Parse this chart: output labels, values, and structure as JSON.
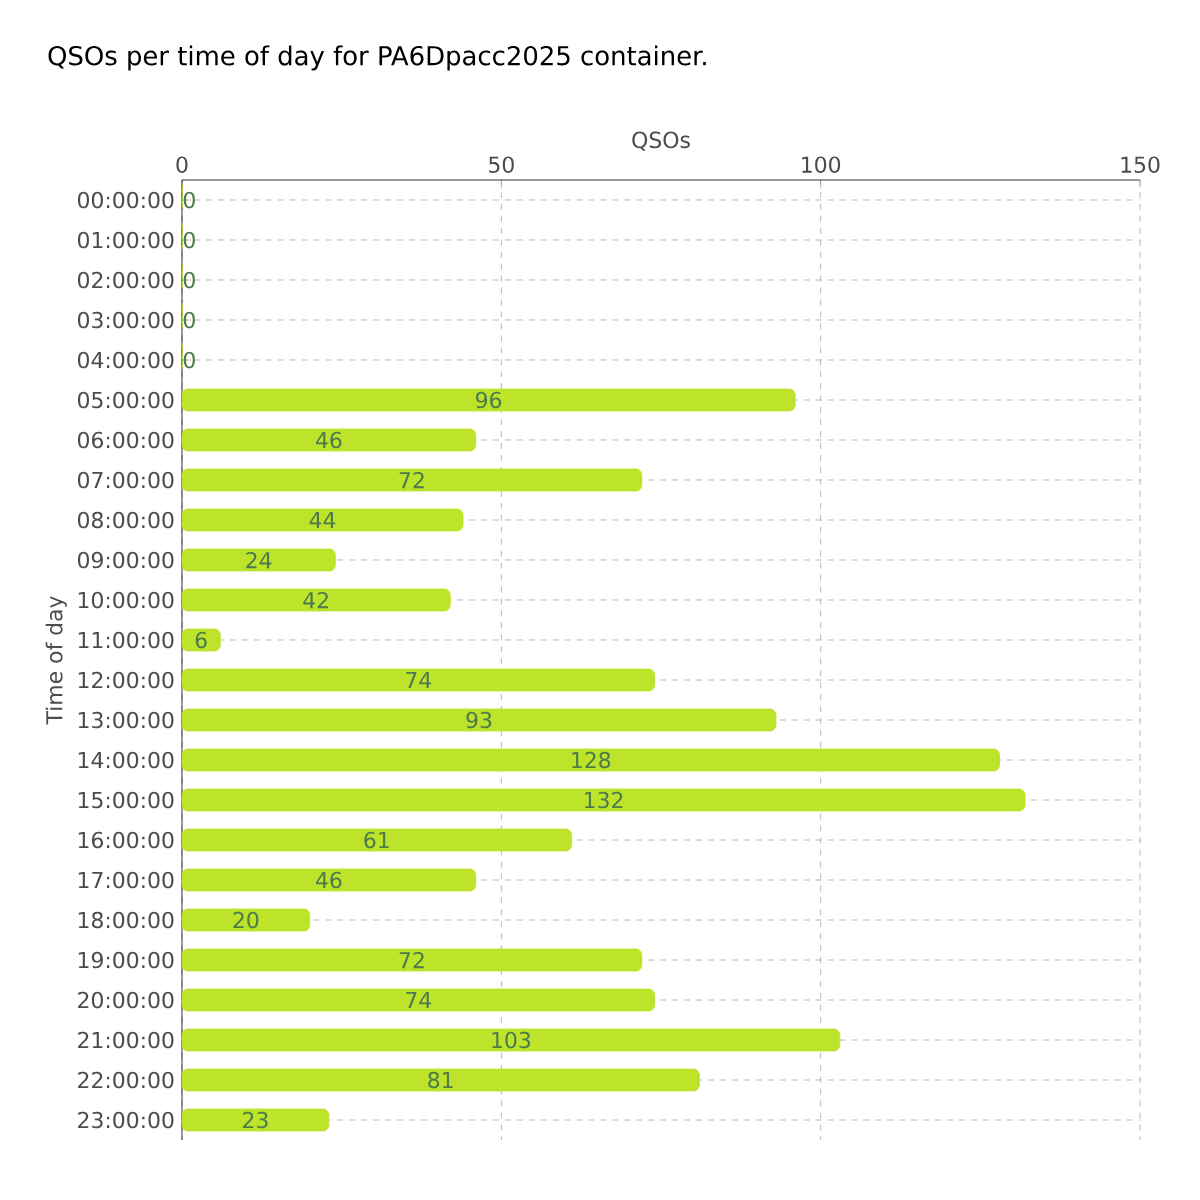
{
  "chart_data": {
    "type": "bar",
    "orientation": "horizontal",
    "title": "QSOs per time of day for PA6Dpacc2025 container.",
    "xlabel": "QSOs",
    "ylabel": "Time of day",
    "categories": [
      "00:00:00",
      "01:00:00",
      "02:00:00",
      "03:00:00",
      "04:00:00",
      "05:00:00",
      "06:00:00",
      "07:00:00",
      "08:00:00",
      "09:00:00",
      "10:00:00",
      "11:00:00",
      "12:00:00",
      "13:00:00",
      "14:00:00",
      "15:00:00",
      "16:00:00",
      "17:00:00",
      "18:00:00",
      "19:00:00",
      "20:00:00",
      "21:00:00",
      "22:00:00",
      "23:00:00"
    ],
    "values": [
      0,
      0,
      0,
      0,
      0,
      96,
      46,
      72,
      44,
      24,
      42,
      6,
      74,
      93,
      128,
      132,
      61,
      46,
      20,
      72,
      74,
      103,
      81,
      23
    ],
    "color": "#bde32a",
    "xlim": [
      0,
      150
    ],
    "xticks": [
      0,
      50,
      100,
      150
    ],
    "grid": true,
    "data_labels": true
  }
}
